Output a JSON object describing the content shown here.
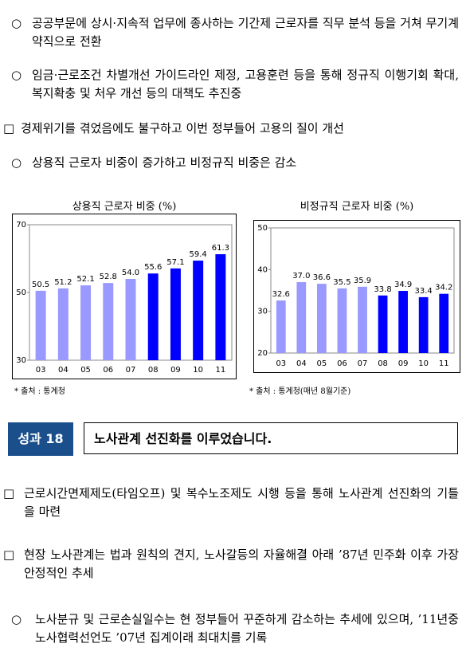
{
  "items_top": [
    {
      "marker": "○",
      "text": "공공부문에 상시·지속적 업무에 종사하는 기간제 근로자를 직무 분석 등을 거쳐 무기계약직으로 전환"
    },
    {
      "marker": "○",
      "text": "임금·근로조건 차별개선 가이드라인 제정, 고용훈련 등을 통해 정규직 이행기회 확대, 복지확충 및 처우 개선 등의 대책도 추진중"
    },
    {
      "marker": "□",
      "text": "경제위기를 겪었음에도 불구하고 이번 정부들어 고용의 질이 개선"
    },
    {
      "marker": "○",
      "text": "상용직 근로자 비중이 증가하고 비정규직 비중은 감소"
    }
  ],
  "chart_data": [
    {
      "type": "bar",
      "title": "상용직 근로자 비중 (%)",
      "source": "* 출처 : 통계청",
      "categories": [
        "03",
        "04",
        "05",
        "06",
        "07",
        "08",
        "09",
        "10",
        "11"
      ],
      "values": [
        50.5,
        51.2,
        52.1,
        52.8,
        54.0,
        55.6,
        57.1,
        59.4,
        61.3
      ],
      "value_labels": [
        "50.5",
        "51.2",
        "52.1",
        "52.8",
        "54.0",
        "55.6",
        "57.1",
        "59.4",
        "61.3"
      ],
      "colors": [
        "#9999ff",
        "#9999ff",
        "#9999ff",
        "#9999ff",
        "#9999ff",
        "#0000ff",
        "#0000ff",
        "#0000ff",
        "#0000ff"
      ],
      "ylim": [
        30,
        70
      ],
      "yticks": [
        30,
        50,
        70
      ]
    },
    {
      "type": "bar",
      "title": "비정규직 근로자 비중 (%)",
      "source": "* 출처 : 통계청(매년 8월기준)",
      "categories": [
        "03",
        "04",
        "05",
        "06",
        "07",
        "08",
        "09",
        "10",
        "11"
      ],
      "values": [
        32.6,
        37.0,
        36.6,
        35.5,
        35.9,
        33.8,
        34.9,
        33.4,
        34.2
      ],
      "value_labels": [
        "32.6",
        "37.0",
        "36.6",
        "35.5",
        "35.9",
        "33.8",
        "34.9",
        "33.4",
        "34.2"
      ],
      "colors": [
        "#9999ff",
        "#9999ff",
        "#9999ff",
        "#9999ff",
        "#9999ff",
        "#0000ff",
        "#0000ff",
        "#0000ff",
        "#0000ff"
      ],
      "ylim": [
        20,
        50
      ],
      "yticks": [
        20,
        30,
        40,
        50
      ]
    }
  ],
  "heading": {
    "badge": "성과 18",
    "title": "노사관계 선진화를 이루었습니다."
  },
  "items_bottom": [
    {
      "marker": "□",
      "text": "근로시간면제제도(타임오프) 및 복수노조제도 시행 등을 통해 노사관계 선진화의 기틀을 마련"
    },
    {
      "marker": "□",
      "text": "현장 노사관계는 법과 원칙의 견지, 노사갈등의 자율해결 아래 ’87년 민주화 이후 가장 안정적인 추세"
    },
    {
      "marker": "○",
      "text": "노사분규 및 근로손실일수는 현 정부들어 꾸준하게 감소하는 추세에 있으며, ’11년중 노사협력선언도 ’07년 집계이래 최대치를 기록"
    }
  ]
}
